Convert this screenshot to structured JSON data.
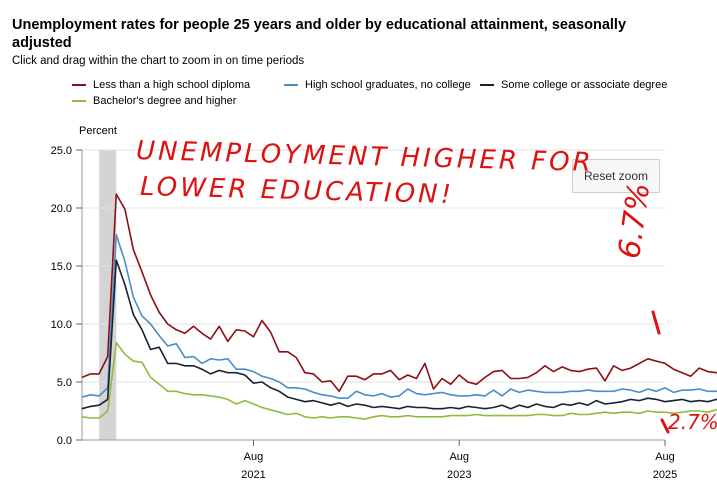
{
  "header": {
    "title": "Unemployment rates for people 25 years and older by educational attainment, seasonally adjusted",
    "subtitle": "Click and drag within the chart to zoom in on time periods"
  },
  "controls": {
    "reset_zoom_label": "Reset zoom"
  },
  "annotations": {
    "main_text_line1": "UNEMPLOYMENT HIGHER FOR",
    "main_text_line2": "LOWER EDUCATION!",
    "high_value": "6.7%",
    "low_value": "2.7%"
  },
  "colors": {
    "less_than_hs": "#8b0f16",
    "hs_grad": "#4a8ec9",
    "some_college": "#182436",
    "bachelors": "#8fbc3e",
    "annotation": "#dd1111",
    "recession_band": "#d4d4d4"
  },
  "chart_data": {
    "type": "line",
    "ylabel": "Percent",
    "ylim": [
      0,
      25
    ],
    "yticks": [
      "0.0",
      "5.0",
      "10.0",
      "15.0",
      "20.0",
      "25.0"
    ],
    "x_start": "2019-12",
    "x_end": "2025-08",
    "xticks": [
      {
        "month": "2021-08",
        "label": "Aug",
        "year": "2021"
      },
      {
        "month": "2023-08",
        "label": "Aug",
        "year": "2023"
      },
      {
        "month": "2025-08",
        "label": "Aug",
        "year": "2025"
      }
    ],
    "recession": [
      "2020-02",
      "2020-04"
    ],
    "grid": true,
    "legend_position": "top",
    "series": [
      {
        "name": "Less than a high school diploma",
        "color": "#8b0f16",
        "values": [
          5.4,
          5.7,
          5.7,
          7.2,
          21.2,
          19.9,
          16.4,
          14.5,
          12.5,
          11.0,
          10.0,
          9.5,
          9.2,
          9.8,
          9.2,
          8.7,
          9.8,
          8.5,
          9.5,
          9.4,
          8.9,
          10.3,
          9.3,
          7.6,
          7.6,
          7.1,
          5.8,
          5.7,
          5.0,
          5.1,
          4.2,
          5.5,
          5.5,
          5.2,
          5.7,
          5.7,
          6.0,
          5.2,
          5.6,
          5.3,
          6.6,
          4.4,
          5.3,
          4.8,
          5.6,
          5.0,
          4.8,
          5.4,
          5.9,
          6.0,
          5.3,
          5.3,
          5.4,
          5.8,
          6.4,
          5.9,
          6.3,
          6.0,
          5.9,
          6.1,
          6.2,
          5.1,
          6.4,
          6.0,
          6.2,
          6.6,
          7.0,
          6.8,
          6.6,
          6.1,
          5.8,
          5.5,
          6.2,
          5.9,
          5.8,
          6.1,
          5.3,
          5.9,
          5.6,
          5.5,
          6.7
        ]
      },
      {
        "name": "High school graduates, no college",
        "color": "#4a8ec9",
        "values": [
          3.7,
          3.9,
          3.8,
          4.5,
          17.7,
          15.4,
          12.3,
          10.7,
          10.0,
          9.0,
          8.1,
          8.3,
          7.1,
          7.2,
          6.6,
          7.0,
          6.9,
          7.0,
          6.1,
          6.1,
          5.9,
          5.5,
          5.3,
          5.0,
          4.5,
          4.5,
          4.4,
          4.1,
          3.9,
          3.8,
          3.6,
          3.6,
          4.2,
          3.9,
          3.8,
          4.0,
          3.7,
          3.8,
          4.4,
          4.0,
          3.9,
          4.0,
          4.1,
          3.9,
          3.8,
          3.8,
          3.9,
          3.8,
          4.3,
          3.8,
          4.4,
          4.1,
          4.3,
          4.2,
          4.1,
          4.1,
          4.1,
          4.2,
          4.2,
          4.3,
          4.2,
          4.2,
          4.2,
          4.4,
          4.3,
          4.1,
          4.4,
          4.2,
          4.5,
          4.1,
          4.3,
          4.3,
          4.4,
          4.2,
          4.2,
          4.4,
          4.2,
          4.3,
          4.4,
          4.2,
          4.3
        ]
      },
      {
        "name": "Some college or associate degree",
        "color": "#182436",
        "values": [
          2.7,
          2.9,
          3.0,
          3.5,
          15.5,
          13.4,
          10.8,
          9.5,
          7.8,
          8.0,
          6.6,
          6.6,
          6.4,
          6.4,
          6.1,
          5.7,
          6.0,
          5.8,
          5.8,
          5.6,
          4.9,
          5.0,
          4.5,
          4.2,
          3.7,
          3.5,
          3.3,
          3.4,
          3.2,
          3.0,
          3.2,
          2.9,
          3.1,
          3.0,
          2.8,
          2.9,
          2.8,
          2.7,
          2.9,
          2.8,
          2.8,
          2.7,
          2.7,
          2.8,
          2.7,
          2.9,
          2.8,
          2.7,
          2.8,
          3.0,
          2.7,
          3.0,
          2.8,
          3.1,
          2.9,
          2.8,
          3.1,
          3.0,
          3.2,
          3.0,
          3.4,
          3.1,
          3.2,
          3.3,
          3.5,
          3.4,
          3.6,
          3.5,
          3.3,
          3.4,
          3.5,
          3.3,
          3.4,
          3.3,
          3.5,
          3.2,
          3.1,
          3.3,
          3.1,
          3.0,
          3.1
        ]
      },
      {
        "name": "Bachelor's degree and higher",
        "color": "#8fbc3e",
        "values": [
          2.0,
          1.9,
          1.9,
          2.5,
          8.4,
          7.4,
          6.8,
          6.7,
          5.4,
          4.8,
          4.2,
          4.2,
          4.0,
          3.9,
          3.9,
          3.8,
          3.7,
          3.5,
          3.1,
          3.4,
          3.1,
          2.8,
          2.6,
          2.4,
          2.2,
          2.3,
          2.0,
          1.9,
          2.0,
          1.9,
          2.0,
          2.0,
          1.9,
          1.8,
          2.0,
          2.1,
          2.0,
          2.0,
          2.1,
          2.0,
          2.0,
          2.0,
          2.0,
          2.1,
          2.1,
          2.1,
          2.2,
          2.1,
          2.1,
          2.1,
          2.1,
          2.1,
          2.1,
          2.2,
          2.2,
          2.1,
          2.1,
          2.3,
          2.2,
          2.2,
          2.3,
          2.4,
          2.3,
          2.4,
          2.4,
          2.3,
          2.5,
          2.4,
          2.4,
          2.3,
          2.4,
          2.5,
          2.5,
          2.4,
          2.6,
          2.5,
          2.5,
          2.7,
          2.6,
          2.6,
          2.7
        ]
      }
    ]
  }
}
